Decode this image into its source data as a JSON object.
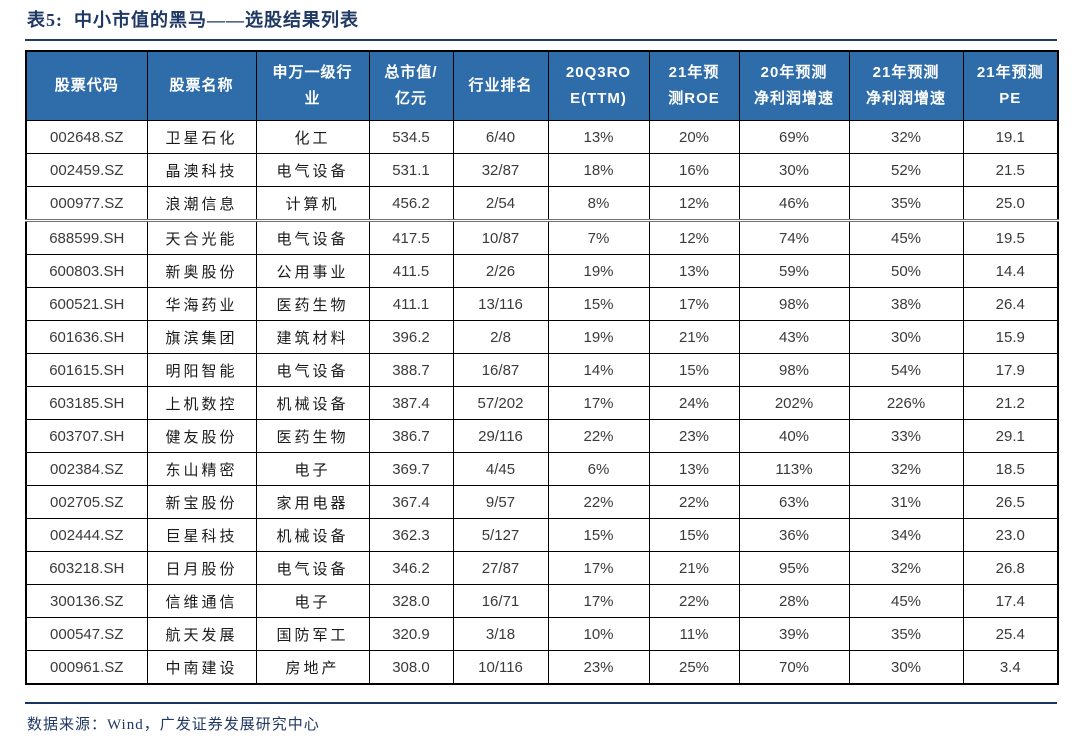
{
  "title": "表5:  中小市值的黑马——选股结果列表",
  "colors": {
    "header_bg": "#2e6da9",
    "accent_navy": "#1f3864",
    "table_border": "#000000"
  },
  "table": {
    "headers": [
      "股票代码",
      "股票名称",
      "申万一级行\n业",
      "总市值/\n亿元",
      "行业排名",
      "20Q3RO\nE(TTM)",
      "21年预\n测ROE",
      "20年预测\n净利润增速",
      "21年预测\n净利润增速",
      "21年预测\nPE"
    ],
    "rows": [
      [
        "002648.SZ",
        "卫星石化",
        "化工",
        "534.5",
        "6/40",
        "13%",
        "20%",
        "69%",
        "32%",
        "19.1"
      ],
      [
        "002459.SZ",
        "晶澳科技",
        "电气设备",
        "531.1",
        "32/87",
        "18%",
        "16%",
        "30%",
        "52%",
        "21.5"
      ],
      [
        "000977.SZ",
        "浪潮信息",
        "计算机",
        "456.2",
        "2/54",
        "8%",
        "12%",
        "46%",
        "35%",
        "25.0"
      ],
      [
        "688599.SH",
        "天合光能",
        "电气设备",
        "417.5",
        "10/87",
        "7%",
        "12%",
        "74%",
        "45%",
        "19.5"
      ],
      [
        "600803.SH",
        "新奥股份",
        "公用事业",
        "411.5",
        "2/26",
        "19%",
        "13%",
        "59%",
        "50%",
        "14.4"
      ],
      [
        "600521.SH",
        "华海药业",
        "医药生物",
        "411.1",
        "13/116",
        "15%",
        "17%",
        "98%",
        "38%",
        "26.4"
      ],
      [
        "601636.SH",
        "旗滨集团",
        "建筑材料",
        "396.2",
        "2/8",
        "19%",
        "21%",
        "43%",
        "30%",
        "15.9"
      ],
      [
        "601615.SH",
        "明阳智能",
        "电气设备",
        "388.7",
        "16/87",
        "14%",
        "15%",
        "98%",
        "54%",
        "17.9"
      ],
      [
        "603185.SH",
        "上机数控",
        "机械设备",
        "387.4",
        "57/202",
        "17%",
        "24%",
        "202%",
        "226%",
        "21.2"
      ],
      [
        "603707.SH",
        "健友股份",
        "医药生物",
        "386.7",
        "29/116",
        "22%",
        "23%",
        "40%",
        "33%",
        "29.1"
      ],
      [
        "002384.SZ",
        "东山精密",
        "电子",
        "369.7",
        "4/45",
        "6%",
        "13%",
        "113%",
        "32%",
        "18.5"
      ],
      [
        "002705.SZ",
        "新宝股份",
        "家用电器",
        "367.4",
        "9/57",
        "22%",
        "22%",
        "63%",
        "31%",
        "26.5"
      ],
      [
        "002444.SZ",
        "巨星科技",
        "机械设备",
        "362.3",
        "5/127",
        "15%",
        "15%",
        "36%",
        "34%",
        "23.0"
      ],
      [
        "603218.SH",
        "日月股份",
        "电气设备",
        "346.2",
        "27/87",
        "17%",
        "21%",
        "95%",
        "32%",
        "26.8"
      ],
      [
        "300136.SZ",
        "信维通信",
        "电子",
        "328.0",
        "16/71",
        "17%",
        "22%",
        "28%",
        "45%",
        "17.4"
      ],
      [
        "000547.SZ",
        "航天发展",
        "国防军工",
        "320.9",
        "3/18",
        "10%",
        "11%",
        "39%",
        "35%",
        "25.4"
      ],
      [
        "000961.SZ",
        "中南建设",
        "房地产",
        "308.0",
        "10/116",
        "23%",
        "25%",
        "70%",
        "30%",
        "3.4"
      ]
    ]
  },
  "footer": {
    "source": "数据来源：Wind，广发证券发展研究中心"
  }
}
